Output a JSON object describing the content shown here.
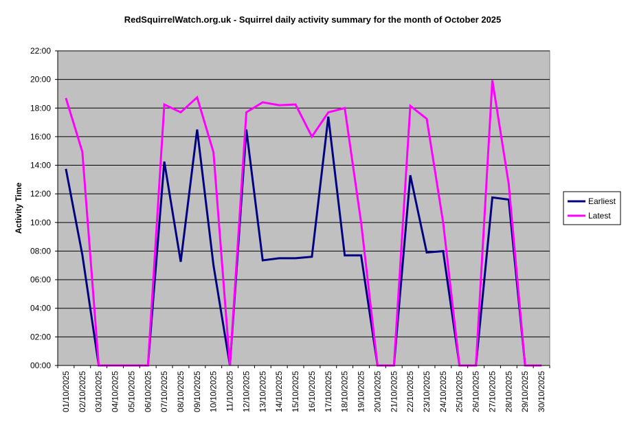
{
  "chart_data": {
    "type": "line",
    "title": "RedSquirrelWatch.org.uk - Squirrel daily activity summary for the month of October 2025",
    "xlabel": "",
    "ylabel": "Activity Time",
    "y_unit": "hours",
    "ylim": [
      0,
      22
    ],
    "yticks": [
      "00:00",
      "02:00",
      "04:00",
      "06:00",
      "08:00",
      "10:00",
      "12:00",
      "14:00",
      "16:00",
      "18:00",
      "20:00",
      "22:00"
    ],
    "grid": true,
    "legend_position": "right",
    "categories": [
      "01/10/2025",
      "02/10/2025",
      "03/10/2025",
      "04/10/2025",
      "05/10/2025",
      "06/10/2025",
      "07/10/2025",
      "08/10/2025",
      "09/10/2025",
      "10/10/2025",
      "11/10/2025",
      "12/10/2025",
      "13/10/2025",
      "14/10/2025",
      "15/10/2025",
      "16/10/2025",
      "17/10/2025",
      "18/10/2025",
      "19/10/2025",
      "20/10/2025",
      "21/10/2025",
      "22/10/2025",
      "23/10/2025",
      "24/10/2025",
      "25/10/2025",
      "26/10/2025",
      "27/10/2025",
      "28/10/2025",
      "29/10/2025",
      "30/10/2025"
    ],
    "series": [
      {
        "name": "Earliest",
        "color": "#000080",
        "values": [
          13.75,
          7.75,
          0,
          0,
          0,
          0,
          14.25,
          7.25,
          16.5,
          7.0,
          0,
          16.5,
          7.35,
          7.5,
          7.5,
          7.6,
          17.4,
          7.7,
          7.7,
          0,
          0,
          13.3,
          7.9,
          8.0,
          0,
          0,
          11.75,
          11.6,
          0,
          0
        ]
      },
      {
        "name": "Latest",
        "color": "#ff00ff",
        "values": [
          18.7,
          14.95,
          0,
          0,
          0,
          0,
          18.25,
          17.7,
          18.75,
          14.9,
          0,
          17.7,
          18.4,
          18.2,
          18.25,
          16.0,
          17.7,
          18.0,
          10.0,
          0,
          0,
          18.15,
          17.25,
          10.0,
          0,
          0,
          19.95,
          12.7,
          0,
          0
        ]
      }
    ]
  }
}
